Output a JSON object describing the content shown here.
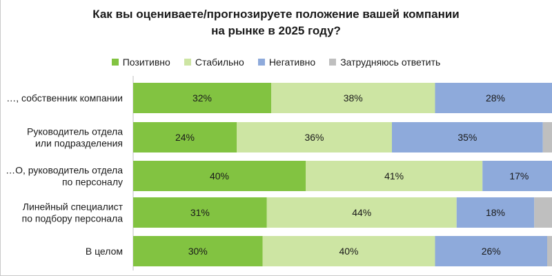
{
  "chart_data": {
    "type": "bar",
    "orientation": "horizontal",
    "stacked": true,
    "title": [
      "Как вы оцениваете/прогнозируете положение вашей компании",
      "на рынке в 2025 году?"
    ],
    "categories": [
      [
        "…, собственник компании"
      ],
      [
        "Руководитель отдела",
        "или подразделения"
      ],
      [
        "…О, руководитель отдела",
        "по персоналу"
      ],
      [
        "Линейный специалист",
        "по подбору персонала"
      ],
      [
        "В целом"
      ]
    ],
    "series": [
      {
        "name": "Позитивно",
        "color": "#82c341",
        "values": [
          32,
          24,
          40,
          31,
          30
        ]
      },
      {
        "name": "Стабильно",
        "color": "#cde5a3",
        "values": [
          38,
          36,
          41,
          44,
          40
        ]
      },
      {
        "name": "Негативно",
        "color": "#8eaadb",
        "values": [
          28,
          35,
          17,
          18,
          26
        ]
      },
      {
        "name": "Затрудняюсь ответить",
        "color": "#bfbfbf",
        "values": [
          2,
          5,
          2,
          7,
          4
        ]
      }
    ],
    "value_suffix": "%",
    "legend_position": "top",
    "xlim": [
      0,
      100
    ]
  }
}
